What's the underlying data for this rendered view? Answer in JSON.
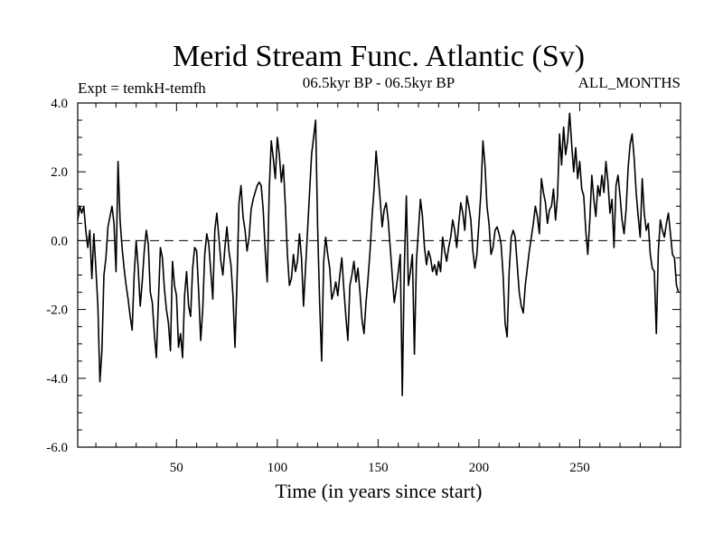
{
  "chart_data": {
    "type": "line",
    "title": "Merid Stream Func. Atlantic (Sv)",
    "subtitle_left": "Expt = temkH-temfh",
    "subtitle_center": "06.5kyr BP - 06.5kyr BP",
    "subtitle_right": "ALL_MONTHS",
    "xlabel": "Time (in years since start)",
    "ylabel": "",
    "xlim": [
      1,
      300
    ],
    "ylim": [
      -6.0,
      4.0
    ],
    "xticks": [
      50,
      100,
      150,
      200,
      250
    ],
    "xtick_labels": [
      "50",
      "100",
      "150",
      "200",
      "250"
    ],
    "yticks": [
      -6.0,
      -4.0,
      -2.0,
      0.0,
      2.0,
      4.0
    ],
    "ytick_labels": [
      "-6.0",
      "-4.0",
      "-2.0",
      "0.0",
      "2.0",
      "4.0"
    ],
    "reference_line": 0.0,
    "series": [
      {
        "name": "Merid Stream Func. Atlantic",
        "color": "#000000",
        "x_start": 1,
        "x_step": 1,
        "values": [
          0.6,
          1.0,
          0.8,
          1.0,
          0.3,
          -0.2,
          0.3,
          -1.1,
          0.2,
          -0.8,
          -1.9,
          -4.1,
          -3.2,
          -1.0,
          -0.5,
          0.4,
          0.7,
          1.0,
          0.5,
          -0.9,
          2.3,
          0.6,
          -0.2,
          -0.8,
          -1.3,
          -1.7,
          -2.2,
          -2.6,
          -1.0,
          0.0,
          -0.8,
          -1.9,
          -1.2,
          -0.3,
          0.3,
          -0.1,
          -1.5,
          -1.8,
          -2.7,
          -3.4,
          -1.8,
          -0.2,
          -0.5,
          -1.4,
          -2.0,
          -2.4,
          -3.2,
          -0.6,
          -1.3,
          -1.6,
          -3.1,
          -2.7,
          -3.4,
          -1.6,
          -0.9,
          -1.9,
          -2.2,
          -0.8,
          -0.2,
          -0.3,
          -1.5,
          -2.9,
          -2.0,
          -0.4,
          0.2,
          -0.1,
          -0.9,
          -1.7,
          0.3,
          0.8,
          0.1,
          -0.6,
          -1.0,
          -0.2,
          0.4,
          -0.3,
          -0.7,
          -1.6,
          -3.1,
          -1.2,
          1.1,
          1.6,
          0.7,
          0.3,
          -0.3,
          0.1,
          0.9,
          1.2,
          1.4,
          1.6,
          1.7,
          1.6,
          0.9,
          -0.3,
          -1.2,
          1.5,
          2.9,
          2.4,
          1.8,
          3.0,
          2.5,
          1.7,
          2.2,
          1.0,
          -0.4,
          -1.3,
          -1.1,
          -0.4,
          -0.9,
          -0.6,
          0.2,
          -0.5,
          -1.9,
          -0.8,
          0.3,
          1.4,
          2.5,
          3.0,
          3.5,
          0.4,
          -1.8,
          -3.5,
          -0.6,
          0.1,
          -0.4,
          -0.8,
          -1.7,
          -1.5,
          -1.2,
          -1.6,
          -1.0,
          -0.5,
          -1.4,
          -2.2,
          -2.9,
          -1.3,
          -1.0,
          -0.6,
          -1.2,
          -0.8,
          -1.5,
          -2.3,
          -2.7,
          -1.8,
          -1.1,
          -0.3,
          0.7,
          1.5,
          2.6,
          1.9,
          1.2,
          0.4,
          0.9,
          1.1,
          0.6,
          -0.2,
          -1.0,
          -1.8,
          -1.4,
          -0.9,
          -0.4,
          -4.5,
          -0.8,
          1.3,
          -1.3,
          -0.9,
          -0.4,
          -3.3,
          -0.6,
          0.3,
          1.2,
          0.7,
          -0.2,
          -0.7,
          -0.3,
          -0.5,
          -0.9,
          -0.7,
          -1.0,
          -0.6,
          -0.9,
          0.1,
          -0.3,
          -0.6,
          -0.2,
          0.1,
          0.6,
          0.3,
          -0.2,
          0.5,
          1.1,
          0.8,
          0.3,
          1.3,
          1.0,
          0.6,
          -0.3,
          -0.8,
          -0.4,
          0.5,
          1.4,
          2.9,
          2.2,
          1.0,
          0.5,
          -0.4,
          -0.2,
          0.3,
          0.4,
          0.2,
          -0.1,
          -1.0,
          -2.4,
          -2.8,
          -0.9,
          0.1,
          0.3,
          0.1,
          -0.7,
          -1.5,
          -1.9,
          -2.1,
          -1.3,
          -0.8,
          -0.3,
          0.1,
          0.5,
          1.0,
          0.7,
          0.2,
          1.8,
          1.4,
          1.1,
          0.5,
          0.9,
          1.0,
          1.5,
          0.6,
          1.3,
          3.1,
          2.2,
          3.3,
          2.5,
          2.9,
          3.7,
          2.8,
          2.0,
          2.7,
          1.8,
          2.3,
          1.5,
          1.3,
          0.3,
          -0.4,
          0.6,
          1.9,
          1.2,
          0.7,
          1.6,
          1.3,
          1.9,
          1.4,
          2.3,
          1.7,
          0.8,
          1.2,
          -0.2,
          1.6,
          1.9,
          1.3,
          0.6,
          0.2,
          0.9,
          2.1,
          2.8,
          3.1,
          2.4,
          1.4,
          0.7,
          0.1,
          1.8,
          0.8,
          0.3,
          0.5,
          -0.4,
          -0.8,
          -0.9,
          -2.7,
          -0.3,
          0.6,
          0.3,
          0.1,
          0.5,
          0.8,
          0.2,
          -0.4,
          -0.5,
          -1.3,
          -1.5
        ]
      }
    ]
  }
}
